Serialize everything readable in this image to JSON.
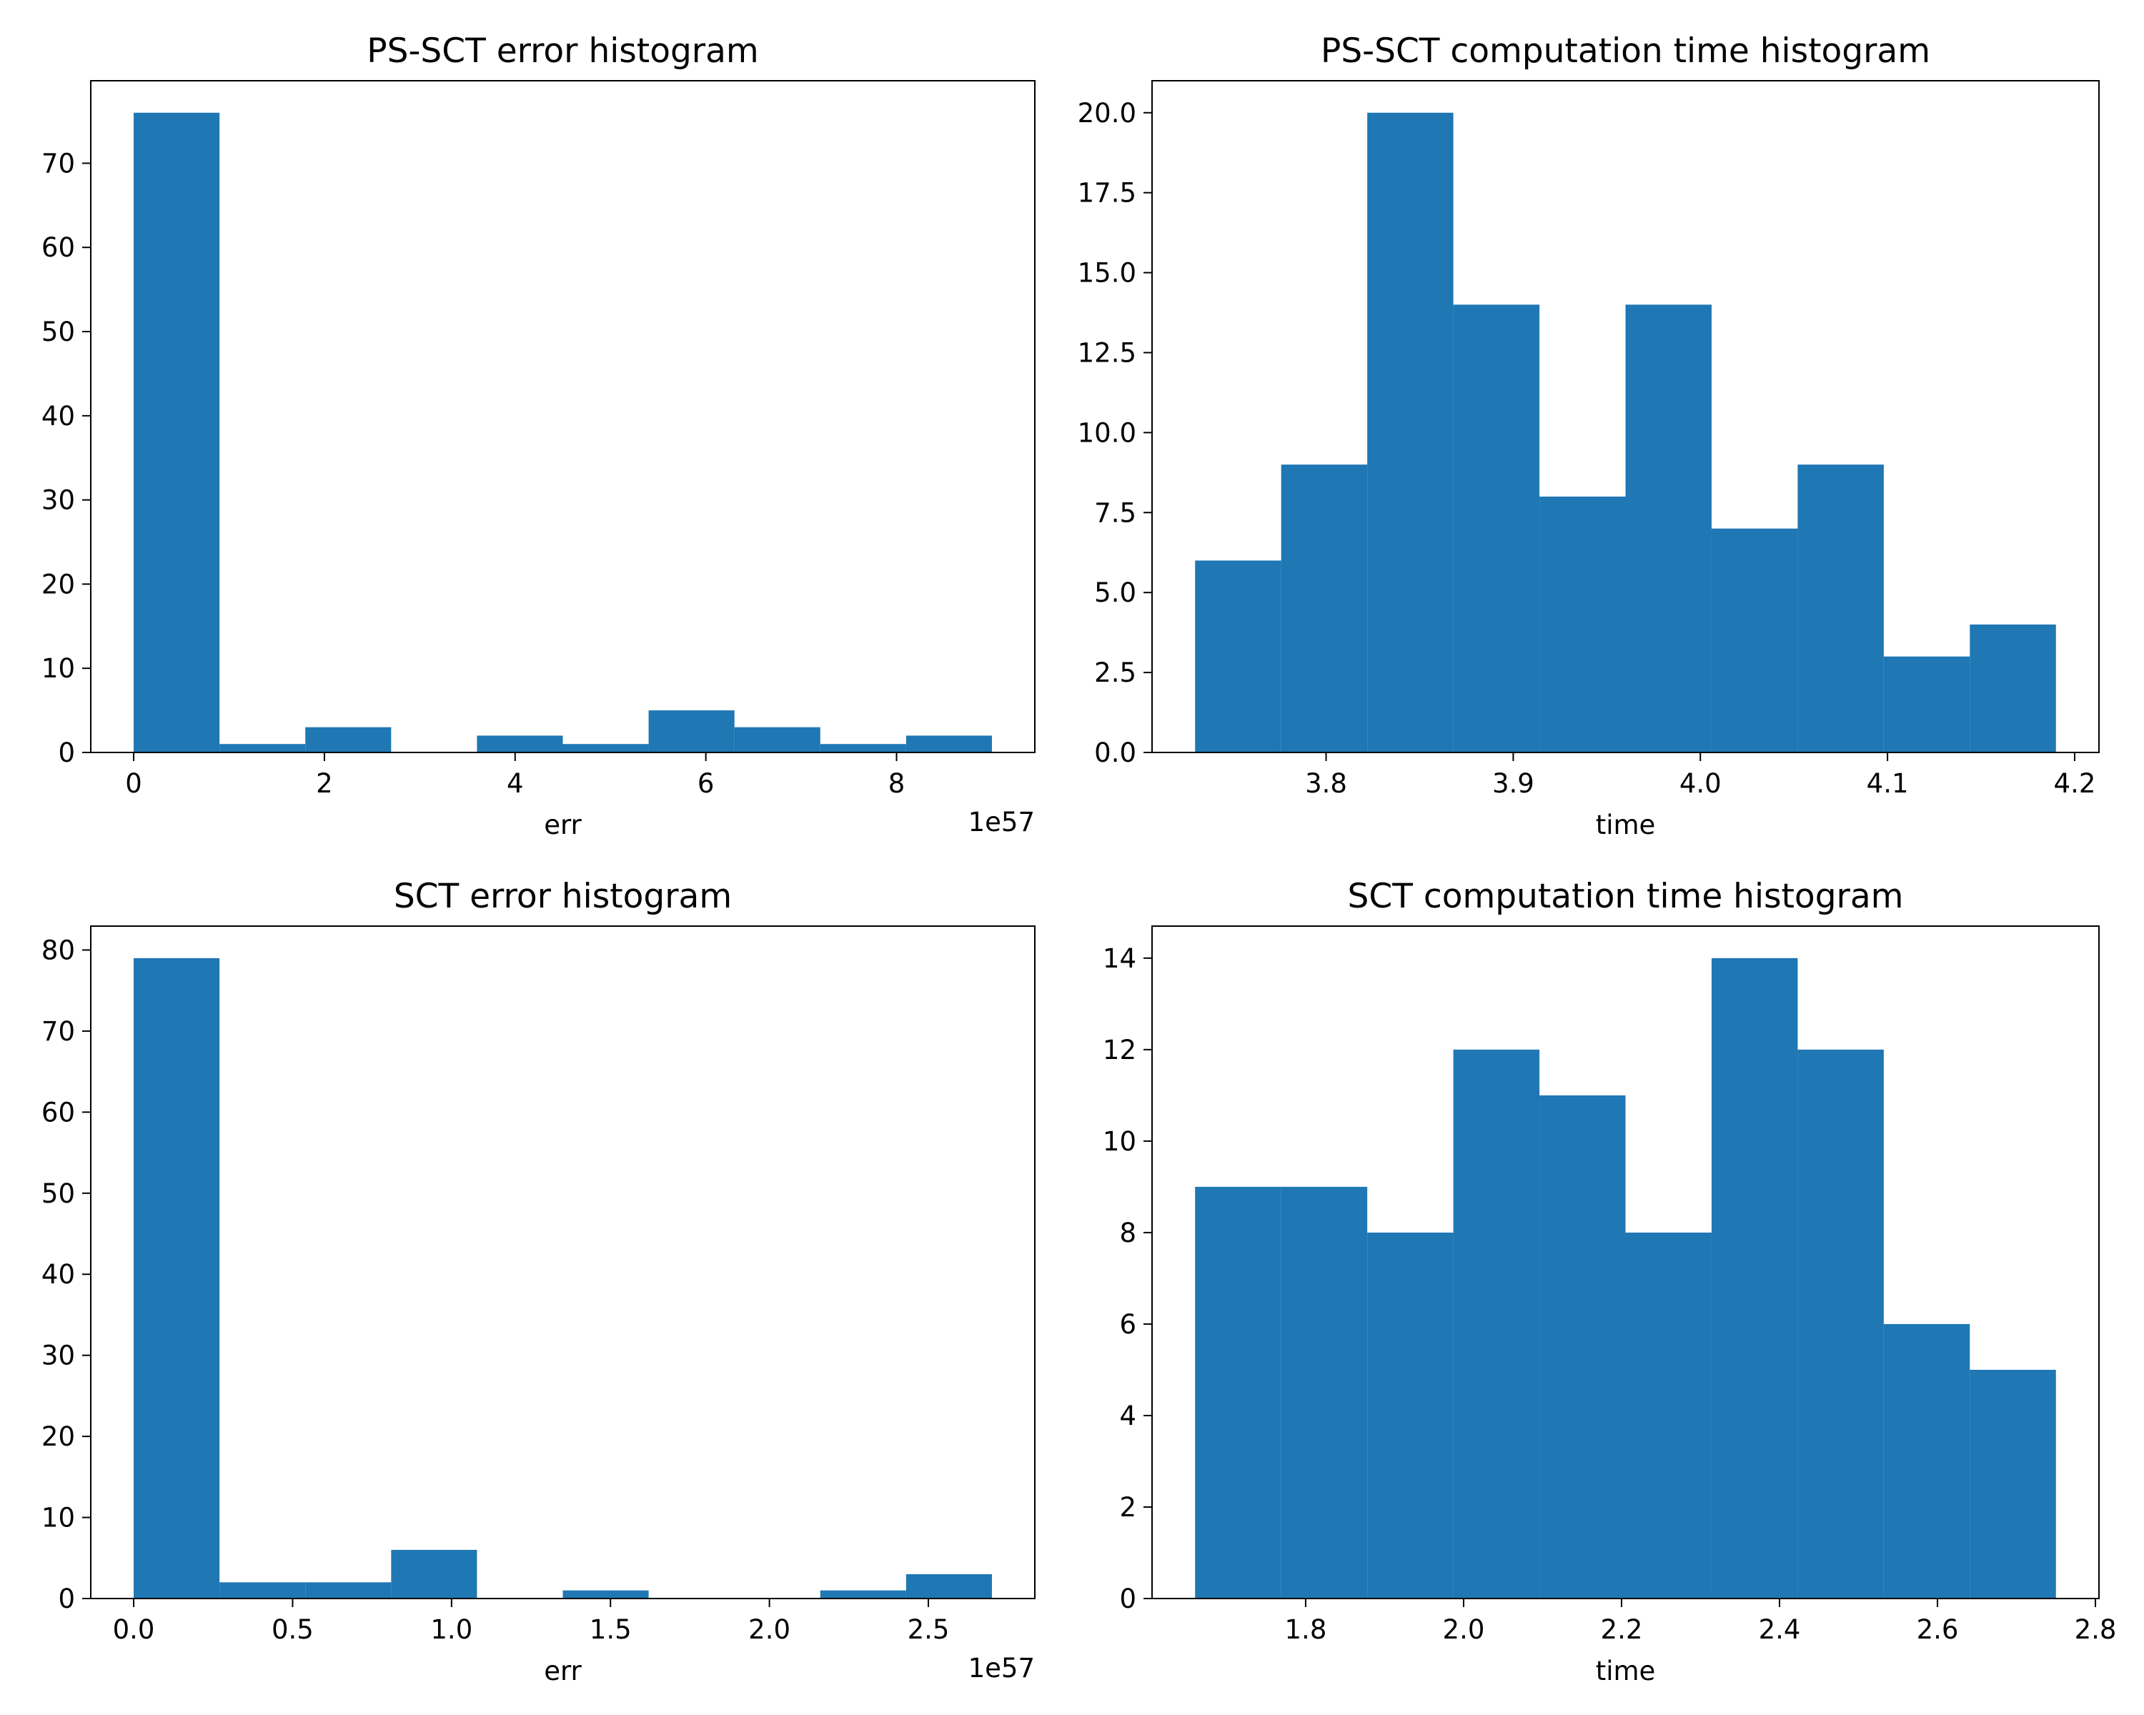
{
  "bar_color": "#1f77b4",
  "chart_data": [
    {
      "type": "bar",
      "title": "PS-SCT error histogram",
      "xlabel": "err",
      "ylabel": "",
      "x_offset_label": "1e57",
      "x_ticks": [
        "0",
        "2",
        "4",
        "6",
        "8"
      ],
      "y_ticks": [
        "0",
        "10",
        "20",
        "30",
        "40",
        "50",
        "60",
        "70"
      ],
      "bin_edges": [
        0,
        0.9,
        1.8,
        2.7,
        3.6,
        4.5,
        5.4,
        6.3,
        7.2,
        8.1,
        9.0
      ],
      "values": [
        76,
        1,
        3,
        0,
        2,
        1,
        5,
        3,
        1,
        2
      ],
      "xlim": [
        -0.45,
        9.45
      ],
      "ylim": [
        0,
        79.8
      ],
      "grid": false
    },
    {
      "type": "bar",
      "title": "PS-SCT computation time histogram",
      "xlabel": "time",
      "ylabel": "",
      "x_ticks": [
        "3.8",
        "3.9",
        "4.0",
        "4.1",
        "4.2"
      ],
      "y_ticks": [
        "0.0",
        "2.5",
        "5.0",
        "7.5",
        "10.0",
        "12.5",
        "15.0",
        "17.5",
        "20.0"
      ],
      "bin_edges": [
        3.73,
        3.776,
        3.822,
        3.868,
        3.914,
        3.96,
        4.006,
        4.052,
        4.098,
        4.144,
        4.19
      ],
      "values": [
        6,
        9,
        20,
        14,
        8,
        14,
        7,
        9,
        3,
        4
      ],
      "xlim": [
        3.707,
        4.213
      ],
      "ylim": [
        0,
        21
      ],
      "grid": false
    },
    {
      "type": "bar",
      "title": "SCT error histogram",
      "xlabel": "err",
      "ylabel": "",
      "x_offset_label": "1e57",
      "x_ticks": [
        "0.0",
        "0.5",
        "1.0",
        "1.5",
        "2.0",
        "2.5"
      ],
      "y_ticks": [
        "0",
        "10",
        "20",
        "30",
        "40",
        "50",
        "60",
        "70",
        "80"
      ],
      "bin_edges": [
        0,
        0.27,
        0.54,
        0.81,
        1.08,
        1.35,
        1.62,
        1.89,
        2.16,
        2.43,
        2.7
      ],
      "values": [
        79,
        2,
        2,
        6,
        0,
        1,
        0,
        0,
        1,
        3
      ],
      "xlim": [
        -0.135,
        2.835
      ],
      "ylim": [
        0,
        82.95
      ],
      "grid": false
    },
    {
      "type": "bar",
      "title": "SCT computation time histogram",
      "xlabel": "time",
      "ylabel": "",
      "x_ticks": [
        "1.8",
        "2.0",
        "2.2",
        "2.4",
        "2.6",
        "2.8"
      ],
      "y_ticks": [
        "0",
        "2",
        "4",
        "6",
        "8",
        "10",
        "12",
        "14"
      ],
      "bin_edges": [
        1.66,
        1.769,
        1.878,
        1.987,
        2.096,
        2.205,
        2.314,
        2.423,
        2.532,
        2.641,
        2.75
      ],
      "values": [
        9,
        9,
        8,
        12,
        11,
        8,
        14,
        12,
        6,
        5
      ],
      "xlim": [
        1.6055,
        2.8045
      ],
      "ylim": [
        0,
        14.7
      ],
      "grid": false
    }
  ]
}
